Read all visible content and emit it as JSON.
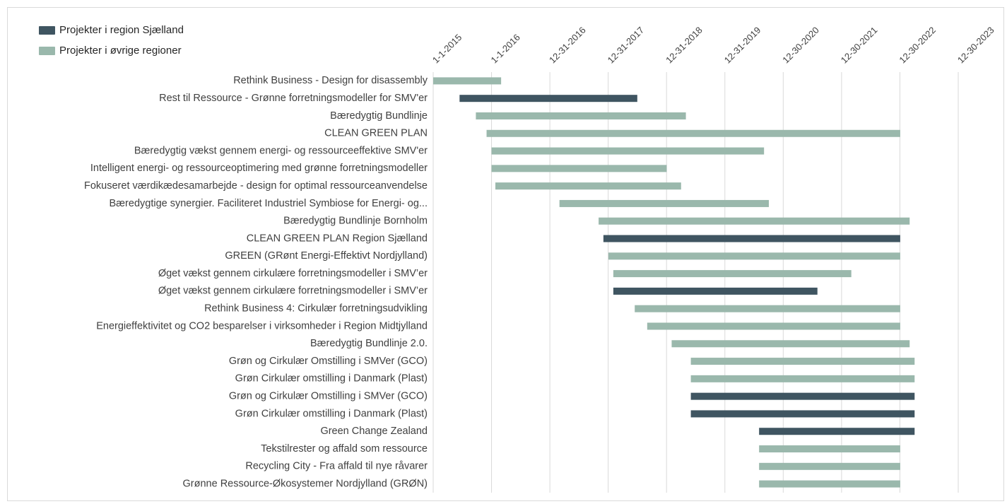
{
  "chart_data": {
    "type": "gantt",
    "series": [
      {
        "name": "Projekter i region Sjælland",
        "color": "#3f5561"
      },
      {
        "name": "Projekter i øvrige regioner",
        "color": "#9ab8ac"
      }
    ],
    "tasks": [
      {
        "label": "Rethink Business - Design for disassembly",
        "start": "2015-01-01",
        "end": "2016-03-01",
        "series": 1
      },
      {
        "label": "Rest til Ressource - Grønne forretningsmodeller for SMV'er",
        "start": "2015-06-15",
        "end": "2018-07-01",
        "series": 0
      },
      {
        "label": "Bæredygtig Bundlinje",
        "start": "2015-09-25",
        "end": "2019-05-01",
        "series": 1
      },
      {
        "label": "CLEAN GREEN PLAN",
        "start": "2015-12-01",
        "end": "2023-01-01",
        "series": 1
      },
      {
        "label": "Bæredygtig vækst gennem energi- og ressourceeffektive SMV'er",
        "start": "2016-01-01",
        "end": "2020-09-01",
        "series": 1
      },
      {
        "label": "Intelligent energi- og ressourceoptimering med grønne forretningsmodeller",
        "start": "2016-01-01",
        "end": "2019-01-01",
        "series": 1
      },
      {
        "label": "Fokuseret værdikædesamarbejde - design for optimal ressourceanvendelse",
        "start": "2016-01-25",
        "end": "2019-04-01",
        "series": 1
      },
      {
        "label": "Bæredygtige synergier. Faciliteret Industriel Symbiose for Energi- og...",
        "start": "2017-03-01",
        "end": "2020-10-01",
        "series": 1
      },
      {
        "label": "Bæredygtig Bundlinje Bornholm",
        "start": "2017-11-01",
        "end": "2023-03-01",
        "series": 1
      },
      {
        "label": "CLEAN GREEN PLAN Region Sjælland",
        "start": "2017-12-01",
        "end": "2023-01-01",
        "series": 0
      },
      {
        "label": "GREEN (GRønt Energi-Effektivt Nordjylland)",
        "start": "2018-01-01",
        "end": "2023-01-01",
        "series": 1
      },
      {
        "label": "Øget vækst gennem cirkulære forretningsmodeller i SMV’er",
        "start": "2018-02-01",
        "end": "2022-03-01",
        "series": 1
      },
      {
        "label": "Øget vækst gennem cirkulære forretningsmodeller i SMV’er",
        "start": "2018-02-01",
        "end": "2021-08-01",
        "series": 0
      },
      {
        "label": "Rethink Business 4: Cirkulær forretningsudvikling",
        "start": "2018-06-15",
        "end": "2023-01-01",
        "series": 1
      },
      {
        "label": "Energieffektivitet og CO2 besparelser i virksomheder i Region Midtjylland",
        "start": "2018-09-01",
        "end": "2023-01-01",
        "series": 1
      },
      {
        "label": "Bæredygtig Bundlinje 2.0.",
        "start": "2019-02-01",
        "end": "2023-03-01",
        "series": 1
      },
      {
        "label": "Grøn og Cirkulær Omstilling i SMVer (GCO)",
        "start": "2019-06-01",
        "end": "2023-04-01",
        "series": 1
      },
      {
        "label": "Grøn Cirkulær omstilling i Danmark (Plast)",
        "start": "2019-06-01",
        "end": "2023-04-01",
        "series": 1
      },
      {
        "label": "Grøn og Cirkulær Omstilling i SMVer (GCO)",
        "start": "2019-06-01",
        "end": "2023-04-01",
        "series": 0
      },
      {
        "label": "Grøn Cirkulær omstilling i Danmark (Plast)",
        "start": "2019-06-01",
        "end": "2023-04-01",
        "series": 0
      },
      {
        "label": "Green Change Zealand",
        "start": "2020-08-01",
        "end": "2023-04-01",
        "series": 0
      },
      {
        "label": "Tekstilrester og affald som ressource",
        "start": "2020-08-01",
        "end": "2023-01-01",
        "series": 1
      },
      {
        "label": "Recycling City - Fra affald til nye råvarer",
        "start": "2020-08-01",
        "end": "2023-01-01",
        "series": 1
      },
      {
        "label": "Grønne Ressource-Økosystemer Nordjylland (GRØN)",
        "start": "2020-08-01",
        "end": "2023-01-01",
        "series": 1
      }
    ],
    "xlim": [
      "2015-01-01",
      "2023-12-30"
    ],
    "xticks": [
      {
        "value": "2015-01-01",
        "label": "1-1-2015"
      },
      {
        "value": "2016-01-01",
        "label": "1-1-2016"
      },
      {
        "value": "2016-12-31",
        "label": "12-31-2016"
      },
      {
        "value": "2017-12-31",
        "label": "12-31-2017"
      },
      {
        "value": "2018-12-31",
        "label": "12-31-2018"
      },
      {
        "value": "2019-12-31",
        "label": "12-31-2019"
      },
      {
        "value": "2020-12-30",
        "label": "12-30-2020"
      },
      {
        "value": "2021-12-30",
        "label": "12-30-2021"
      },
      {
        "value": "2022-12-30",
        "label": "12-30-2022"
      },
      {
        "value": "2023-12-30",
        "label": "12-30-2023"
      }
    ],
    "grid": true,
    "legend": "top-left"
  }
}
